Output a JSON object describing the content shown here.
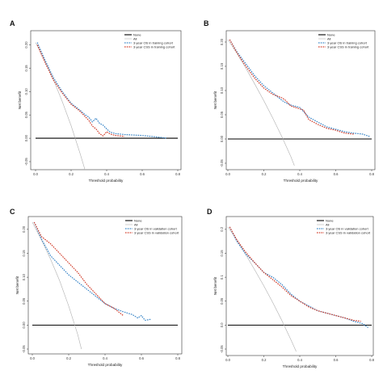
{
  "chart_data": [
    {
      "panel": "A",
      "type": "line",
      "xlabel": "Threshold probability",
      "ylabel": "Net benefit",
      "xlim": [
        0,
        0.8
      ],
      "ylim": [
        -0.05,
        0.22
      ],
      "xticks": [
        "0.0",
        "0.2",
        "0.4",
        "0.6",
        "0.8"
      ],
      "yticks": [
        {
          "v": 0.2,
          "label": "0.20"
        },
        {
          "v": 0.15,
          "label": "0.15"
        },
        {
          "v": 0.1,
          "label": "0.10"
        },
        {
          "v": 0.05,
          "label": "0.05"
        },
        {
          "v": 0.0,
          "label": "0.00"
        },
        {
          "v": -0.05,
          "label": "-0.05"
        }
      ],
      "legend_position": "top-right",
      "series": [
        {
          "name": "None",
          "style": "none",
          "color": "#000000",
          "x": [
            0,
            0.8
          ],
          "y": [
            0,
            0
          ]
        },
        {
          "name": "All",
          "style": "all",
          "color": "#b0b0b0",
          "x": [
            0,
            0.05,
            0.1,
            0.15,
            0.2,
            0.25,
            0.28
          ],
          "y": [
            0.205,
            0.168,
            0.126,
            0.079,
            0.027,
            -0.032,
            -0.07
          ]
        },
        {
          "name": "3-year OS in training cohort",
          "style": "blue",
          "color": "#3a86c8",
          "x": [
            0.01,
            0.05,
            0.1,
            0.15,
            0.2,
            0.25,
            0.28,
            0.3,
            0.32,
            0.34,
            0.36,
            0.38,
            0.4,
            0.42,
            0.45,
            0.5,
            0.55,
            0.6,
            0.65,
            0.7,
            0.74
          ],
          "y": [
            0.205,
            0.17,
            0.13,
            0.1,
            0.075,
            0.06,
            0.05,
            0.045,
            0.035,
            0.043,
            0.032,
            0.028,
            0.02,
            0.013,
            0.01,
            0.008,
            0.007,
            0.006,
            0.004,
            0.002,
            0.0
          ]
        },
        {
          "name": "3-year CSS in training cohort",
          "style": "red",
          "color": "#d2402e",
          "x": [
            0.01,
            0.05,
            0.1,
            0.15,
            0.2,
            0.25,
            0.28,
            0.3,
            0.32,
            0.34,
            0.36,
            0.38,
            0.4,
            0.42,
            0.45,
            0.5
          ],
          "y": [
            0.2,
            0.165,
            0.125,
            0.097,
            0.073,
            0.058,
            0.046,
            0.038,
            0.026,
            0.02,
            0.01,
            0.005,
            0.014,
            0.009,
            0.006,
            0.004
          ]
        }
      ]
    },
    {
      "panel": "B",
      "type": "line",
      "xlabel": "Threshold probability",
      "ylabel": "Net benefit",
      "xlim": [
        0,
        0.8
      ],
      "ylim": [
        -0.05,
        0.22
      ],
      "xticks": [
        "0.0",
        "0.2",
        "0.4",
        "0.6",
        "0.8"
      ],
      "yticks": [
        {
          "v": 0.2,
          "label": "0.20"
        },
        {
          "v": 0.15,
          "label": "0.15"
        },
        {
          "v": 0.1,
          "label": "0.10"
        },
        {
          "v": 0.05,
          "label": "0.05"
        },
        {
          "v": 0.0,
          "label": "0.00"
        },
        {
          "v": -0.05,
          "label": "-0.05"
        }
      ],
      "legend_position": "top-right",
      "series": [
        {
          "name": "None",
          "style": "none",
          "color": "#000000",
          "x": [
            0,
            0.8
          ],
          "y": [
            0,
            0
          ]
        },
        {
          "name": "All",
          "style": "all",
          "color": "#b0b0b0",
          "x": [
            0,
            0.05,
            0.1,
            0.15,
            0.2,
            0.25,
            0.3,
            0.35,
            0.37
          ],
          "y": [
            0.205,
            0.177,
            0.146,
            0.113,
            0.079,
            0.043,
            0.005,
            -0.036,
            -0.055
          ]
        },
        {
          "name": "3-year OS in training cohort",
          "style": "blue",
          "color": "#3a86c8",
          "x": [
            0.01,
            0.05,
            0.1,
            0.15,
            0.2,
            0.25,
            0.3,
            0.32,
            0.35,
            0.4,
            0.45,
            0.5,
            0.55,
            0.6,
            0.65,
            0.7,
            0.75,
            0.79
          ],
          "y": [
            0.205,
            0.18,
            0.155,
            0.13,
            0.11,
            0.095,
            0.08,
            0.075,
            0.07,
            0.065,
            0.045,
            0.035,
            0.025,
            0.02,
            0.015,
            0.012,
            0.01,
            0.005
          ]
        },
        {
          "name": "3-year CSS in training cohort",
          "style": "red",
          "color": "#d2402e",
          "x": [
            0.01,
            0.05,
            0.1,
            0.15,
            0.2,
            0.25,
            0.3,
            0.32,
            0.35,
            0.4,
            0.42,
            0.45,
            0.5,
            0.55,
            0.6,
            0.65,
            0.7
          ],
          "y": [
            0.205,
            0.178,
            0.15,
            0.125,
            0.105,
            0.092,
            0.085,
            0.08,
            0.068,
            0.062,
            0.06,
            0.04,
            0.03,
            0.022,
            0.018,
            0.012,
            0.01
          ]
        }
      ]
    },
    {
      "panel": "C",
      "type": "line",
      "xlabel": "Threshold probability",
      "ylabel": "Net benefit",
      "xlim": [
        0,
        0.8
      ],
      "ylim": [
        -0.05,
        0.22
      ],
      "xticks": [
        "0.0",
        "0.2",
        "0.4",
        "0.6",
        "0.8"
      ],
      "yticks": [
        {
          "v": 0.2,
          "label": "0.20"
        },
        {
          "v": 0.15,
          "label": "0.15"
        },
        {
          "v": 0.1,
          "label": "0.10"
        },
        {
          "v": 0.05,
          "label": "0.05"
        },
        {
          "v": 0.0,
          "label": "0.00"
        },
        {
          "v": -0.05,
          "label": "-0.05"
        }
      ],
      "legend_position": "top-right",
      "series": [
        {
          "name": "None",
          "style": "none",
          "color": "#000000",
          "x": [
            0,
            0.8
          ],
          "y": [
            0,
            0
          ]
        },
        {
          "name": "All",
          "style": "all",
          "color": "#b0b0b0",
          "x": [
            0,
            0.05,
            0.1,
            0.15,
            0.2,
            0.25,
            0.27
          ],
          "y": [
            0.215,
            0.178,
            0.138,
            0.093,
            0.04,
            -0.02,
            -0.05
          ]
        },
        {
          "name": "3-year OS in validation cohort",
          "style": "blue",
          "color": "#3a86c8",
          "x": [
            0.01,
            0.05,
            0.1,
            0.15,
            0.2,
            0.25,
            0.3,
            0.35,
            0.4,
            0.45,
            0.5,
            0.55,
            0.58,
            0.6,
            0.62,
            0.65
          ],
          "y": [
            0.215,
            0.18,
            0.145,
            0.125,
            0.105,
            0.09,
            0.075,
            0.06,
            0.045,
            0.035,
            0.028,
            0.022,
            0.015,
            0.02,
            0.01,
            0.012
          ]
        },
        {
          "name": "3-year CSS in validation cohort",
          "style": "red",
          "color": "#d2402e",
          "x": [
            0.01,
            0.05,
            0.1,
            0.15,
            0.2,
            0.25,
            0.3,
            0.35,
            0.4,
            0.45,
            0.5
          ],
          "y": [
            0.215,
            0.185,
            0.17,
            0.15,
            0.13,
            0.11,
            0.085,
            0.065,
            0.045,
            0.035,
            0.02
          ]
        }
      ]
    },
    {
      "panel": "D",
      "type": "line",
      "xlabel": "Threshold probability",
      "ylabel": "Net benefit",
      "xlim": [
        0,
        0.8
      ],
      "ylim": [
        -0.05,
        0.22
      ],
      "xticks": [
        "0.0",
        "0.2",
        "0.4",
        "0.6",
        "0.8"
      ],
      "yticks": [
        {
          "v": 0.2,
          "label": "0.2"
        },
        {
          "v": 0.15,
          "label": "0.15"
        },
        {
          "v": 0.1,
          "label": "0.1"
        },
        {
          "v": 0.05,
          "label": "0.05"
        },
        {
          "v": 0.0,
          "label": "0.0"
        },
        {
          "v": -0.05,
          "label": "-0.05"
        }
      ],
      "legend_position": "top-right",
      "series": [
        {
          "name": "None",
          "style": "none",
          "color": "#000000",
          "x": [
            0,
            0.8
          ],
          "y": [
            0,
            0
          ]
        },
        {
          "name": "All",
          "style": "all",
          "color": "#b0b0b0",
          "x": [
            0,
            0.05,
            0.1,
            0.15,
            0.2,
            0.25,
            0.3,
            0.35,
            0.38
          ],
          "y": [
            0.205,
            0.178,
            0.147,
            0.115,
            0.082,
            0.047,
            0.01,
            -0.03,
            -0.055
          ]
        },
        {
          "name": "3-year OS in validation cohort",
          "style": "blue",
          "color": "#3a86c8",
          "x": [
            0.01,
            0.05,
            0.1,
            0.15,
            0.2,
            0.25,
            0.3,
            0.35,
            0.4,
            0.45,
            0.5,
            0.55,
            0.6,
            0.65,
            0.7,
            0.75,
            0.78
          ],
          "y": [
            0.205,
            0.175,
            0.148,
            0.13,
            0.11,
            0.1,
            0.085,
            0.065,
            0.05,
            0.04,
            0.03,
            0.025,
            0.02,
            0.015,
            0.008,
            0.003,
            -0.005
          ]
        },
        {
          "name": "3-year CSS in validation cohort",
          "style": "red",
          "color": "#d2402e",
          "x": [
            0.01,
            0.05,
            0.1,
            0.15,
            0.2,
            0.25,
            0.3,
            0.35,
            0.4,
            0.45,
            0.5,
            0.55,
            0.6,
            0.65,
            0.7,
            0.74
          ],
          "y": [
            0.205,
            0.178,
            0.152,
            0.13,
            0.11,
            0.095,
            0.08,
            0.062,
            0.05,
            0.038,
            0.03,
            0.025,
            0.02,
            0.015,
            0.01,
            0.008
          ]
        }
      ]
    }
  ]
}
